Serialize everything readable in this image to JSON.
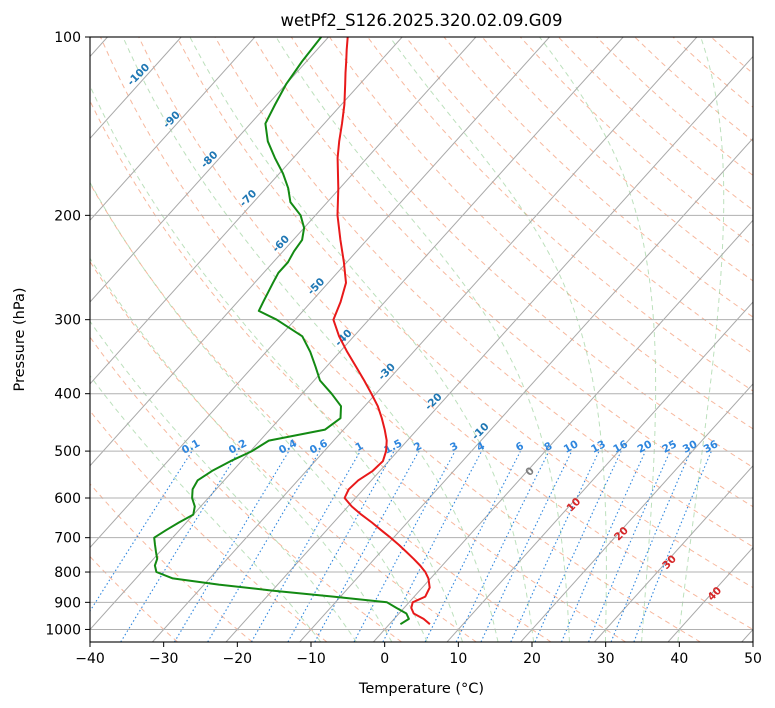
{
  "chart_data": {
    "type": "line",
    "subtype": "skew-t log-p",
    "title": "wetPf2_S126.2025.320.02.09.G09",
    "xlabel": "Temperature (°C)",
    "ylabel": "Pressure (hPa)",
    "xlim": [
      -40,
      50
    ],
    "ylim": [
      1050,
      100
    ],
    "y_scale": "log",
    "x_ticks": [
      -40,
      -30,
      -20,
      -10,
      0,
      10,
      20,
      30,
      40,
      50
    ],
    "x_tick_labels": [
      "−40",
      "−30",
      "−20",
      "−10",
      "0",
      "10",
      "20",
      "30",
      "40",
      "50"
    ],
    "y_ticks": [
      1000,
      900,
      800,
      700,
      600,
      500,
      400,
      300,
      200,
      100
    ],
    "y_tick_labels": [
      "1000",
      "900",
      "800",
      "700",
      "600",
      "500",
      "400",
      "300",
      "200",
      "100"
    ],
    "grid": true,
    "background_lines": {
      "isotherms_skewed": [
        -150,
        -140,
        -130,
        -120,
        -110,
        -100,
        -90,
        -80,
        -70,
        -60,
        -50,
        -40,
        -30,
        -20,
        -10,
        0,
        10,
        20,
        30,
        40,
        50
      ],
      "dry_adiabats_C": [
        -30,
        -20,
        -10,
        0,
        10,
        20,
        30,
        40,
        50,
        60,
        70,
        80,
        90,
        100,
        110,
        120,
        130,
        140,
        150,
        160,
        170,
        180,
        190,
        200
      ],
      "moist_adiabats_C": [
        -10,
        -5,
        0,
        5,
        10,
        15,
        20,
        25,
        30,
        35,
        40
      ],
      "mixing_ratio_gkg": [
        0.1,
        0.2,
        0.4,
        0.6,
        1,
        1.5,
        2,
        3,
        4,
        6,
        8,
        10,
        13,
        16,
        20,
        25,
        30,
        36
      ]
    },
    "annotations": {
      "mixing_ratio_labels": [
        "0.1",
        "0.2",
        "0.4",
        "0.6",
        "1",
        "1.5",
        "2",
        "3",
        "4",
        "6",
        "8",
        "10",
        "13",
        "16",
        "20",
        "25",
        "30",
        "36"
      ],
      "isotherm_labels_blue": [
        "-100",
        "-90",
        "-80",
        "-70",
        "-60",
        "-50",
        "-40",
        "-30",
        "-20",
        "-10"
      ],
      "isotherm_labels_red": [
        "10",
        "20",
        "30",
        "40"
      ],
      "isotherm_label_grey": "0"
    },
    "series": [
      {
        "name": "",
        "color": "#e8191a",
        "role": "temperature",
        "p": [
          980,
          960,
          940,
          920,
          900,
          880,
          850,
          820,
          800,
          780,
          760,
          740,
          720,
          700,
          680,
          660,
          640,
          620,
          600,
          580,
          560,
          540,
          520,
          500,
          480,
          460,
          440,
          420,
          400,
          380,
          360,
          340,
          320,
          300,
          280,
          260,
          240,
          220,
          200,
          180,
          160,
          150,
          140,
          130,
          120,
          115,
          110,
          105,
          100
        ],
        "t": [
          5.5,
          4.0,
          2.0,
          1.0,
          0.5,
          1.5,
          1.0,
          -0.3,
          -1.5,
          -3.0,
          -4.7,
          -6.5,
          -8.4,
          -10.4,
          -12.6,
          -14.8,
          -17.2,
          -19.5,
          -21.5,
          -22.0,
          -21.8,
          -21.0,
          -20.8,
          -21.6,
          -22.8,
          -24.4,
          -26.2,
          -28.2,
          -30.6,
          -33.2,
          -36.0,
          -39.0,
          -42.0,
          -44.8,
          -46.0,
          -47.6,
          -50.4,
          -53.6,
          -57.0,
          -60.2,
          -64.0,
          -65.8,
          -67.6,
          -69.6,
          -72.0,
          -73.3,
          -74.6,
          -76.0,
          -77.4
        ]
      },
      {
        "name": "",
        "color": "#138a13",
        "role": "dewpoint",
        "p": [
          980,
          960,
          940,
          920,
          900,
          880,
          860,
          840,
          820,
          800,
          780,
          760,
          740,
          720,
          700,
          680,
          660,
          640,
          620,
          600,
          580,
          560,
          540,
          520,
          500,
          480,
          460,
          440,
          420,
          400,
          380,
          360,
          340,
          320,
          300,
          290,
          280,
          270,
          260,
          250,
          240,
          230,
          220,
          210,
          200,
          190,
          180,
          170,
          160,
          150,
          140,
          130,
          120,
          115,
          110,
          105,
          100
        ],
        "t": [
          1.5,
          2.0,
          1.0,
          -1.0,
          -3.0,
          -11.0,
          -20.0,
          -28.0,
          -35.0,
          -38.0,
          -39.0,
          -39.5,
          -40.5,
          -41.5,
          -42.5,
          -41.8,
          -41.0,
          -40.0,
          -40.8,
          -42.2,
          -43.2,
          -43.6,
          -42.8,
          -41.5,
          -39.8,
          -38.8,
          -32.5,
          -31.8,
          -33.2,
          -36.0,
          -39.2,
          -41.5,
          -44.0,
          -47.0,
          -52.5,
          -56.0,
          -56.5,
          -57.0,
          -57.5,
          -58.0,
          -58.0,
          -58.5,
          -58.8,
          -60.0,
          -62.0,
          -65.0,
          -67.0,
          -69.5,
          -72.5,
          -75.5,
          -78.0,
          -79.0,
          -80.0,
          -80.3,
          -80.6,
          -80.8,
          -81.0
        ]
      }
    ]
  }
}
